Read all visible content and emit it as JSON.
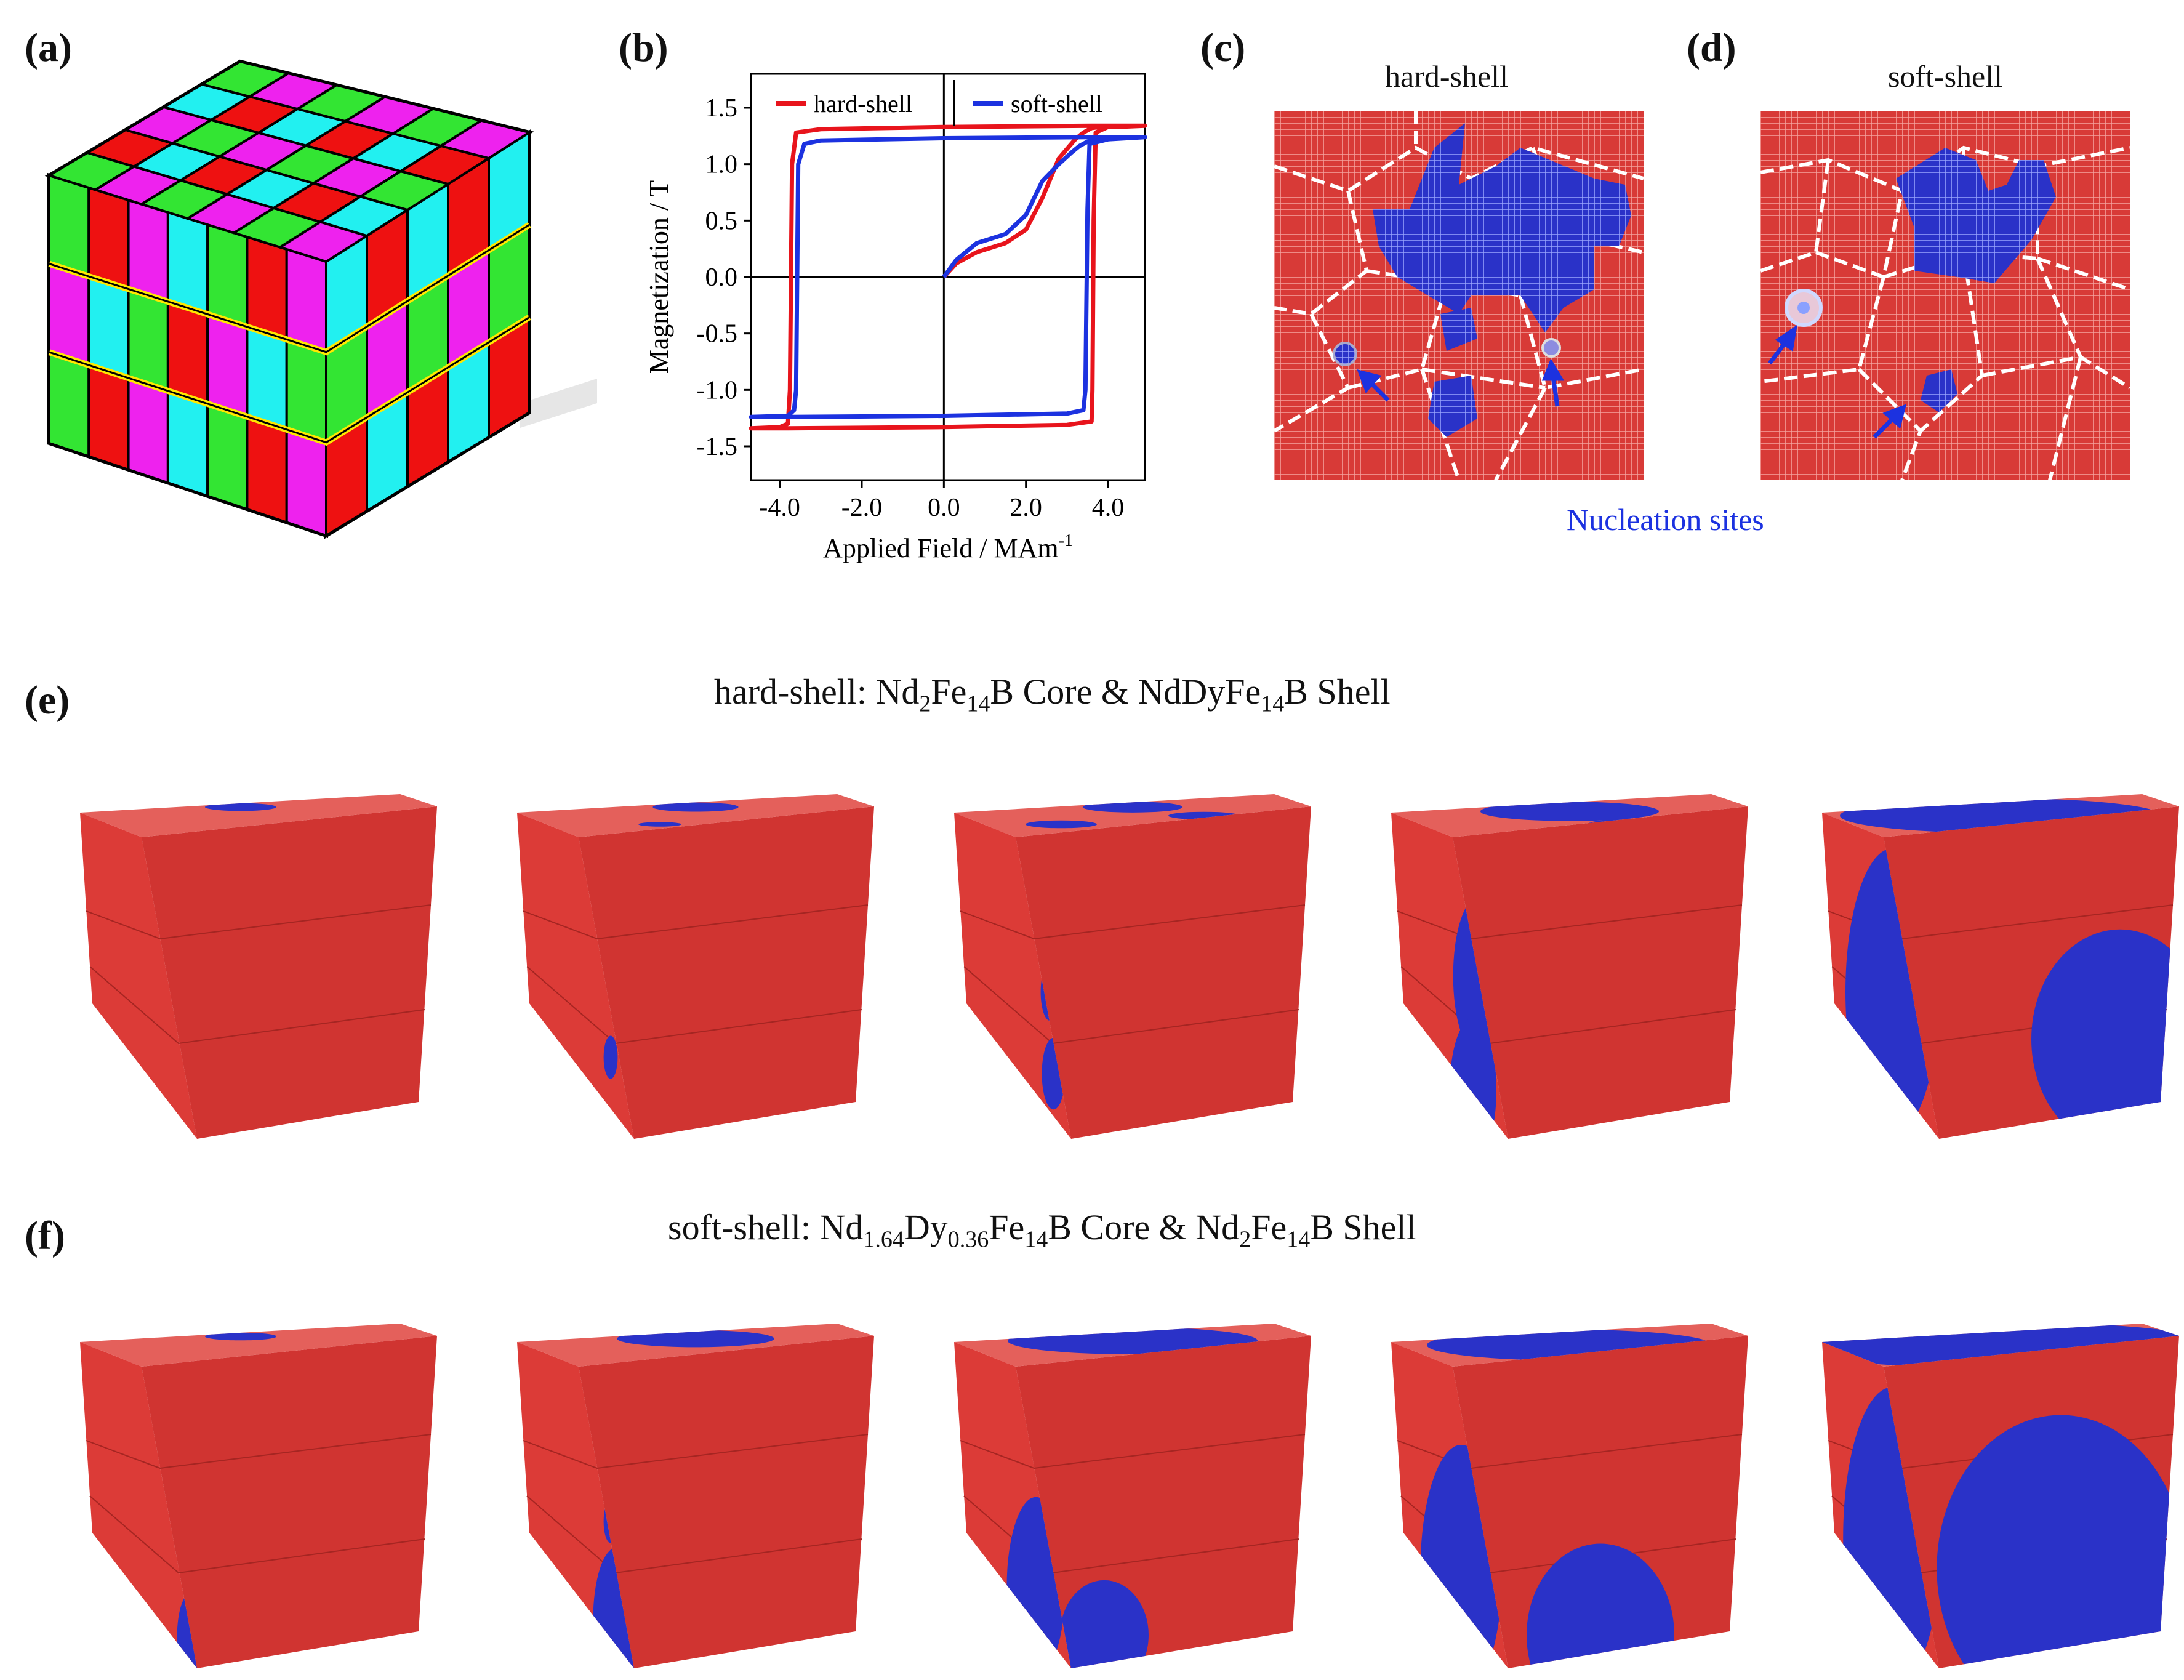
{
  "labels": {
    "a": "(a)",
    "b": "(b)",
    "c": "(c)",
    "d": "(d)",
    "e": "(e)",
    "f": "(f)"
  },
  "panel_c": {
    "title": "hard-shell"
  },
  "panel_d": {
    "title": "soft-shell"
  },
  "nucleation_caption": "Nucleation sites",
  "row_e": {
    "prefix": "hard-shell: Nd",
    "s1": "2",
    "m1": "Fe",
    "s2": "14",
    "m2": "B Core & NdDyFe",
    "s3": "14",
    "m3": "B Shell"
  },
  "row_f": {
    "prefix": "soft-shell: Nd",
    "s1": "1.64",
    "m1": "Dy",
    "s2": "0.36",
    "m2": "Fe",
    "s3": "14",
    "m3": "B Core & Nd",
    "s4": "2",
    "m4": "Fe",
    "s5": "14",
    "m5": "B Shell"
  },
  "colors": {
    "red": "#d83a37",
    "blue": "#2a32c8",
    "green": "#33e533",
    "cyan": "#22f0f0",
    "magenta": "#ee22ee",
    "grain_red": "#ee1111"
  },
  "chart_data": {
    "type": "line",
    "xlabel": "Applied Field / MAm",
    "xlabel_sup": "-1",
    "ylabel": "Magnetization / T",
    "xlim": [
      -4.7,
      4.9
    ],
    "ylim": [
      -1.8,
      1.8
    ],
    "xticks": [
      -4.0,
      -2.0,
      0.0,
      2.0,
      4.0
    ],
    "xtick_labels": [
      "-4.0",
      "-2.0",
      "0.0",
      "2.0",
      "4.0"
    ],
    "yticks": [
      1.5,
      1.0,
      0.5,
      0.0,
      -0.5,
      -1.0,
      -1.5
    ],
    "ytick_labels": [
      "1.5",
      "1.0",
      "0.5",
      "0.0",
      "-0.5",
      "-1.0",
      "-1.5"
    ],
    "legend_position": "top",
    "series": [
      {
        "name": "hard-shell",
        "color": "#e8141c",
        "x": [
          0.0,
          0.3,
          0.8,
          1.5,
          2.0,
          2.4,
          2.8,
          3.2,
          3.4,
          3.5,
          3.6,
          3.8,
          4.2,
          4.9,
          4.9,
          3.6,
          0.0,
          -3.0,
          -3.6,
          -3.7,
          -3.75,
          -3.8,
          -4.0,
          -4.7,
          -4.7,
          -3.8,
          0.0,
          3.0,
          3.6,
          3.62,
          3.65,
          3.7,
          4.0,
          4.9
        ],
        "y": [
          0.0,
          0.12,
          0.22,
          0.3,
          0.42,
          0.7,
          1.05,
          1.22,
          1.28,
          1.3,
          1.32,
          1.33,
          1.33,
          1.34,
          1.34,
          1.34,
          1.33,
          1.31,
          1.28,
          1.0,
          -1.0,
          -1.3,
          -1.33,
          -1.34,
          -1.34,
          -1.34,
          -1.33,
          -1.31,
          -1.28,
          -1.0,
          0.5,
          1.28,
          1.33,
          1.34
        ]
      },
      {
        "name": "soft-shell",
        "color": "#1c32e0",
        "x": [
          0.0,
          0.3,
          0.8,
          1.5,
          2.0,
          2.4,
          2.8,
          3.1,
          3.3,
          3.5,
          3.8,
          4.3,
          4.9,
          4.9,
          3.5,
          0.0,
          -3.0,
          -3.4,
          -3.55,
          -3.6,
          -3.65,
          -3.8,
          -4.7,
          -4.7,
          -3.7,
          0.0,
          3.0,
          3.4,
          3.45,
          3.5,
          3.55,
          4.0,
          4.9
        ],
        "y": [
          0.0,
          0.15,
          0.3,
          0.38,
          0.55,
          0.85,
          1.0,
          1.1,
          1.16,
          1.2,
          1.22,
          1.23,
          1.24,
          1.24,
          1.24,
          1.23,
          1.21,
          1.18,
          1.0,
          -1.0,
          -1.18,
          -1.23,
          -1.24,
          -1.24,
          -1.24,
          -1.23,
          -1.21,
          -1.18,
          -1.0,
          0.6,
          1.18,
          1.22,
          1.24
        ]
      }
    ]
  }
}
